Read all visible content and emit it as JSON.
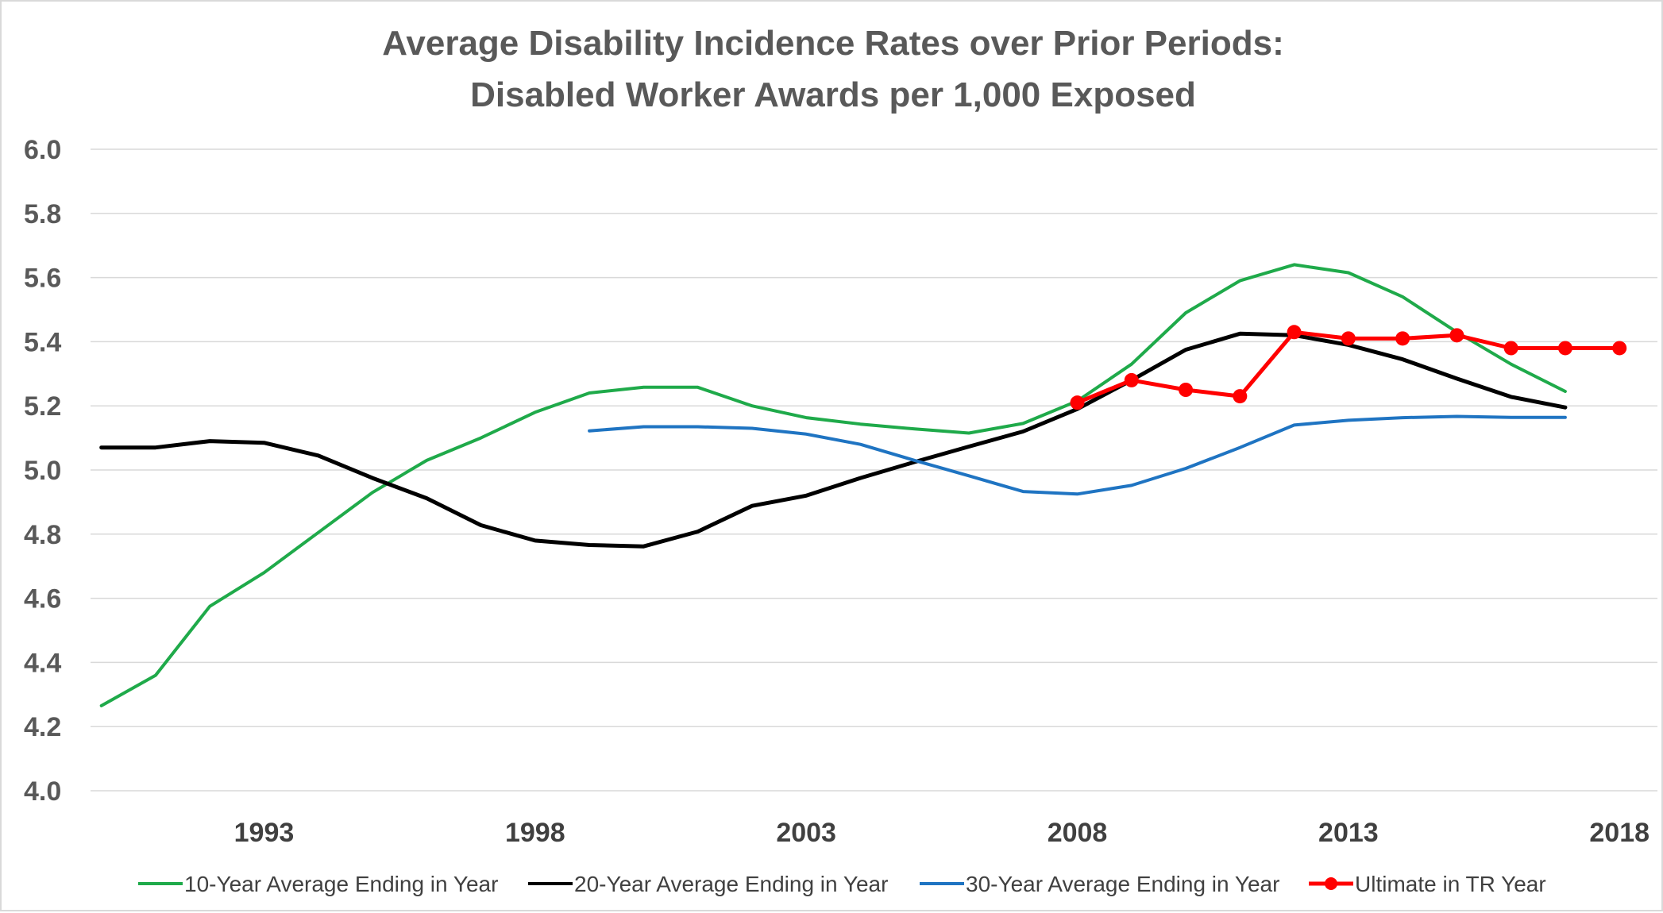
{
  "chart_data": {
    "type": "line",
    "title": "Average Disability Incidence Rates over Prior Periods:",
    "subtitle": "Disabled Worker Awards per 1,000 Exposed",
    "xlabel": "",
    "ylabel": "",
    "xlim": [
      1989.8,
      2018.7
    ],
    "ylim": [
      4.0,
      6.0
    ],
    "yticks": [
      "4.0",
      "4.2",
      "4.4",
      "4.6",
      "4.8",
      "5.0",
      "5.2",
      "5.4",
      "5.6",
      "5.8",
      "6.0"
    ],
    "xticks": [
      "1993",
      "1998",
      "2003",
      "2008",
      "2013",
      "2018"
    ],
    "grid": true,
    "legend_position": "bottom",
    "series": [
      {
        "name": "10-Year Average Ending in Year",
        "color": "#1faa4a",
        "markers": false,
        "x": [
          1990,
          1991,
          1992,
          1993,
          1994,
          1995,
          1996,
          1997,
          1998,
          1999,
          2000,
          2001,
          2002,
          2003,
          2004,
          2005,
          2006,
          2007,
          2008,
          2009,
          2010,
          2011,
          2012,
          2013,
          2014,
          2015,
          2016,
          2017
        ],
        "y": [
          4.265,
          4.36,
          4.575,
          4.68,
          4.805,
          4.93,
          5.03,
          5.1,
          5.18,
          5.24,
          5.258,
          5.258,
          5.2,
          5.163,
          5.143,
          5.128,
          5.115,
          5.145,
          5.215,
          5.33,
          5.49,
          5.59,
          5.64,
          5.615,
          5.54,
          5.43,
          5.33,
          5.245
        ]
      },
      {
        "name": "20-Year Average Ending in Year",
        "color": "#000000",
        "markers": false,
        "x": [
          1990,
          1991,
          1992,
          1993,
          1994,
          1995,
          1996,
          1997,
          1998,
          1999,
          2000,
          2001,
          2002,
          2003,
          2004,
          2005,
          2006,
          2007,
          2008,
          2009,
          2010,
          2011,
          2012,
          2013,
          2014,
          2015,
          2016,
          2017
        ],
        "y": [
          5.07,
          5.07,
          5.09,
          5.085,
          5.045,
          4.975,
          4.912,
          4.828,
          4.78,
          4.766,
          4.762,
          4.808,
          4.888,
          4.92,
          4.975,
          5.025,
          5.073,
          5.12,
          5.19,
          5.28,
          5.375,
          5.425,
          5.42,
          5.39,
          5.345,
          5.285,
          5.228,
          5.195
        ]
      },
      {
        "name": "30-Year Average Ending in Year",
        "color": "#1f74c2",
        "markers": false,
        "x": [
          1999,
          2000,
          2001,
          2002,
          2003,
          2004,
          2005,
          2006,
          2007,
          2008,
          2009,
          2010,
          2011,
          2012,
          2013,
          2014,
          2015,
          2016,
          2017
        ],
        "y": [
          5.122,
          5.135,
          5.135,
          5.13,
          5.112,
          5.08,
          5.03,
          4.982,
          4.933,
          4.925,
          4.952,
          5.005,
          5.07,
          5.14,
          5.155,
          5.163,
          5.167,
          5.164,
          5.164
        ]
      },
      {
        "name": "Ultimate in TR Year",
        "color": "#ff0000",
        "markers": true,
        "x": [
          2008,
          2009,
          2010,
          2011,
          2012,
          2013,
          2014,
          2015,
          2016,
          2017,
          2018
        ],
        "y": [
          5.21,
          5.28,
          5.25,
          5.23,
          5.43,
          5.41,
          5.41,
          5.42,
          5.38,
          5.38,
          5.38
        ]
      }
    ]
  }
}
